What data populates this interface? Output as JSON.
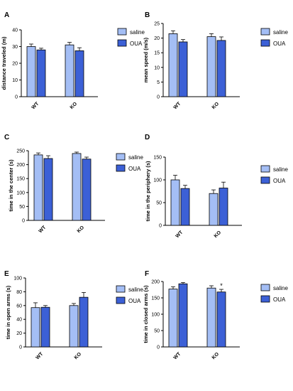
{
  "colors": {
    "saline": "#a4bef5",
    "oua": "#3c60d6",
    "axis": "#000000"
  },
  "chart_data": [
    {
      "panel": "A",
      "type": "bar",
      "ylabel": "distance traveled (m)",
      "ylim": [
        0,
        40
      ],
      "yticks": [
        0,
        10,
        20,
        30,
        40
      ],
      "categories": [
        "WT",
        "KO"
      ],
      "series": [
        {
          "name": "saline",
          "values": [
            30.0,
            31.0
          ],
          "errors": [
            1.5,
            1.5
          ]
        },
        {
          "name": "OUA",
          "values": [
            28.0,
            27.5
          ],
          "errors": [
            1.0,
            1.8
          ]
        }
      ],
      "significance": []
    },
    {
      "panel": "B",
      "type": "bar",
      "ylabel": "mean speed (m/s)",
      "ylim": [
        0,
        25
      ],
      "yticks": [
        0,
        5,
        10,
        15,
        20,
        25
      ],
      "categories": [
        "WT",
        "KO"
      ],
      "series": [
        {
          "name": "saline",
          "values": [
            21.5,
            20.5
          ],
          "errors": [
            1.0,
            1.0
          ]
        },
        {
          "name": "OUA",
          "values": [
            18.7,
            19.2
          ],
          "errors": [
            0.8,
            1.2
          ]
        }
      ],
      "significance": []
    },
    {
      "panel": "C",
      "type": "bar",
      "ylabel": "time in the center (s)",
      "ylim": [
        0,
        250
      ],
      "yticks": [
        0,
        50,
        100,
        150,
        200,
        250
      ],
      "categories": [
        "WT",
        "KO"
      ],
      "series": [
        {
          "name": "saline",
          "values": [
            235,
            240
          ],
          "errors": [
            7,
            5
          ]
        },
        {
          "name": "OUA",
          "values": [
            222,
            220
          ],
          "errors": [
            10,
            7
          ]
        }
      ],
      "significance": []
    },
    {
      "panel": "D",
      "type": "bar",
      "ylabel": "time in the periphery (s)",
      "ylim": [
        0,
        150
      ],
      "yticks": [
        0,
        50,
        100,
        150
      ],
      "categories": [
        "WT",
        "KO"
      ],
      "series": [
        {
          "name": "saline",
          "values": [
            100,
            70
          ],
          "errors": [
            10,
            8
          ]
        },
        {
          "name": "OUA",
          "values": [
            81,
            82
          ],
          "errors": [
            7,
            13
          ]
        }
      ],
      "significance": []
    },
    {
      "panel": "E",
      "type": "bar",
      "ylabel": "time in open arms (s)",
      "ylim": [
        0,
        100
      ],
      "yticks": [
        0,
        20,
        40,
        60,
        80,
        100
      ],
      "categories": [
        "WT",
        "KO"
      ],
      "series": [
        {
          "name": "saline",
          "values": [
            57,
            60
          ],
          "errors": [
            7,
            3
          ]
        },
        {
          "name": "OUA",
          "values": [
            57.5,
            72
          ],
          "errors": [
            2.5,
            7
          ]
        }
      ],
      "significance": []
    },
    {
      "panel": "F",
      "type": "bar",
      "ylabel": "time in closed arms (s)",
      "ylim": [
        0,
        200
      ],
      "yticks": [
        0,
        50,
        100,
        150,
        200
      ],
      "categories": [
        "WT",
        "KO"
      ],
      "series": [
        {
          "name": "saline",
          "values": [
            177,
            180
          ],
          "errors": [
            7,
            7
          ]
        },
        {
          "name": "OUA",
          "values": [
            193,
            168
          ],
          "errors": [
            4,
            8
          ]
        }
      ],
      "significance": [
        {
          "category": "KO",
          "series": "OUA",
          "mark": "*"
        }
      ]
    }
  ]
}
